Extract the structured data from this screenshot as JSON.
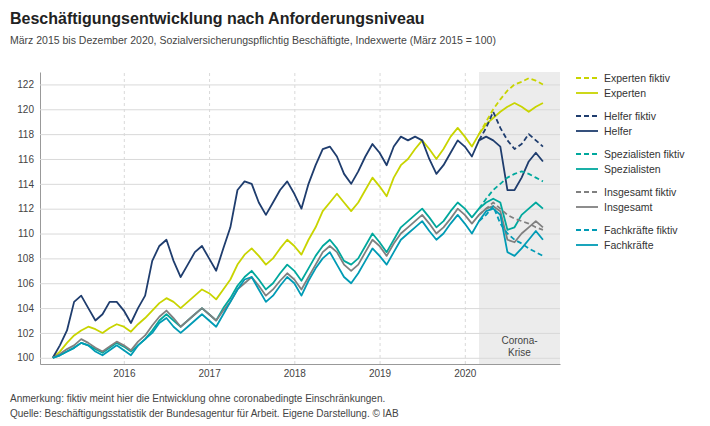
{
  "chart_data": {
    "type": "line",
    "title": "Beschäftigungsentwicklung nach Anforderungsniveau",
    "subtitle": "März 2015 bis Dezember 2020, Sozialversicherungspflichtig Beschäftigte, Indexwerte (März 2015 = 100)",
    "annotations": [
      "Anmerkung: fiktiv meint hier die Entwicklung ohne coronabedingte Einschränkungen.",
      "Quelle: Beschäftigungsstatistik der Bundesagentur für Arbeit. Eigene Darstellung. © IAB"
    ],
    "shaded_region": {
      "label": "Corona-\nKrise",
      "start": 2020.1667
    },
    "x": [
      2015.1667,
      2015.25,
      2015.3333,
      2015.4167,
      2015.5,
      2015.5833,
      2015.6667,
      2015.75,
      2015.8333,
      2015.9167,
      2016,
      2016.0833,
      2016.1667,
      2016.25,
      2016.3333,
      2016.4167,
      2016.5,
      2016.5833,
      2016.6667,
      2016.75,
      2016.8333,
      2016.9167,
      2017,
      2017.0833,
      2017.1667,
      2017.25,
      2017.3333,
      2017.4167,
      2017.5,
      2017.5833,
      2017.6667,
      2017.75,
      2017.8333,
      2017.9167,
      2018,
      2018.0833,
      2018.1667,
      2018.25,
      2018.3333,
      2018.4167,
      2018.5,
      2018.5833,
      2018.6667,
      2018.75,
      2018.8333,
      2018.9167,
      2019,
      2019.0833,
      2019.1667,
      2019.25,
      2019.3333,
      2019.4167,
      2019.5,
      2019.5833,
      2019.6667,
      2019.75,
      2019.8333,
      2019.9167,
      2020,
      2020.0833,
      2020.1667,
      2020.25,
      2020.3333,
      2020.4167,
      2020.5,
      2020.5833,
      2020.6667,
      2020.75,
      2020.8333,
      2020.9167
    ],
    "xlim": [
      2015.0167,
      2021.1167
    ],
    "xticks": [
      2016,
      2017,
      2018,
      2019,
      2020
    ],
    "ylim": [
      99.5,
      123
    ],
    "yticks": [
      100,
      102,
      104,
      106,
      108,
      110,
      112,
      114,
      116,
      118,
      120,
      122
    ],
    "grid": true,
    "legend": "right",
    "series": [
      {
        "name": "Experten",
        "color": "#c8d400",
        "line_style": "solid",
        "values": [
          100.0,
          100.5,
          101.2,
          101.8,
          102.2,
          102.5,
          102.3,
          102.0,
          102.4,
          102.7,
          102.5,
          102.1,
          102.7,
          103.2,
          103.8,
          104.4,
          104.8,
          104.5,
          104.0,
          104.5,
          105.0,
          105.5,
          105.2,
          104.7,
          105.5,
          106.3,
          107.5,
          108.3,
          108.8,
          108.2,
          107.5,
          108.0,
          108.8,
          109.5,
          109.0,
          108.3,
          109.5,
          110.5,
          111.8,
          112.5,
          113.2,
          112.5,
          111.8,
          112.5,
          113.5,
          114.5,
          113.8,
          113.0,
          114.5,
          115.5,
          116.0,
          116.8,
          117.5,
          116.8,
          116.0,
          116.8,
          117.8,
          118.5,
          117.8,
          117.0,
          118.0,
          118.8,
          119.3,
          119.8,
          120.2,
          120.5,
          120.2,
          119.8,
          120.2,
          120.5
        ]
      },
      {
        "name": "Helfer",
        "color": "#1f3d6e",
        "line_style": "solid",
        "values": [
          100.0,
          101.0,
          102.2,
          104.5,
          105.0,
          104.0,
          103.0,
          103.5,
          104.5,
          104.5,
          103.8,
          102.8,
          104.0,
          105.0,
          107.8,
          109.0,
          109.5,
          107.8,
          106.5,
          107.5,
          108.5,
          109.0,
          108.0,
          107.0,
          108.8,
          110.5,
          113.5,
          114.2,
          114.0,
          112.5,
          111.5,
          112.5,
          113.5,
          114.2,
          113.2,
          112.0,
          114.0,
          115.5,
          116.8,
          117.0,
          116.2,
          114.8,
          114.0,
          115.0,
          116.2,
          117.2,
          116.5,
          115.5,
          117.0,
          117.8,
          117.5,
          117.8,
          117.5,
          116.0,
          114.8,
          115.5,
          116.5,
          117.5,
          117.0,
          116.2,
          117.5,
          117.8,
          117.5,
          117.0,
          113.5,
          113.5,
          114.5,
          115.8,
          116.5,
          115.8
        ]
      },
      {
        "name": "Spezialisten",
        "color": "#00a89d",
        "line_style": "solid",
        "values": [
          100.0,
          100.2,
          100.5,
          100.8,
          101.2,
          101.0,
          100.7,
          100.4,
          100.8,
          101.2,
          100.9,
          100.5,
          101.0,
          101.5,
          102.2,
          103.0,
          103.5,
          103.0,
          102.5,
          103.0,
          103.5,
          104.0,
          103.5,
          103.0,
          104.0,
          104.8,
          105.8,
          106.5,
          107.0,
          106.3,
          105.5,
          106.0,
          106.8,
          107.5,
          107.0,
          106.2,
          107.2,
          108.2,
          109.0,
          109.5,
          108.8,
          107.8,
          107.5,
          108.0,
          109.0,
          110.0,
          109.3,
          108.5,
          109.5,
          110.5,
          111.0,
          111.5,
          112.0,
          111.3,
          110.5,
          111.0,
          111.8,
          112.5,
          112.0,
          111.3,
          112.0,
          112.5,
          112.8,
          112.5,
          110.3,
          110.5,
          111.5,
          112.0,
          112.5,
          112.0
        ]
      },
      {
        "name": "Insgesamt",
        "color": "#808080",
        "line_style": "solid",
        "values": [
          100.0,
          100.3,
          100.7,
          101.0,
          101.5,
          101.2,
          100.8,
          100.5,
          100.9,
          101.3,
          101.0,
          100.6,
          101.3,
          101.8,
          102.6,
          103.3,
          103.8,
          103.2,
          102.5,
          103.0,
          103.5,
          104.0,
          103.5,
          103.0,
          103.8,
          104.5,
          105.5,
          106.0,
          106.5,
          105.8,
          105.0,
          105.5,
          106.2,
          106.8,
          106.3,
          105.5,
          106.5,
          107.5,
          108.5,
          109.0,
          108.5,
          107.5,
          107.0,
          107.5,
          108.5,
          109.5,
          109.0,
          108.2,
          109.2,
          110.0,
          110.5,
          111.0,
          111.5,
          110.8,
          110.0,
          110.5,
          111.2,
          112.0,
          111.5,
          110.8,
          111.5,
          112.0,
          112.2,
          111.8,
          109.5,
          109.3,
          110.0,
          110.5,
          111.0,
          110.5
        ]
      },
      {
        "name": "Fachkräfte",
        "color": "#009bb5",
        "line_style": "solid",
        "values": [
          100.0,
          100.2,
          100.5,
          100.8,
          101.2,
          101.0,
          100.5,
          100.2,
          100.6,
          101.0,
          100.6,
          100.2,
          101.0,
          101.5,
          102.0,
          102.8,
          103.2,
          102.5,
          102.0,
          102.5,
          103.0,
          103.5,
          103.0,
          102.5,
          103.5,
          104.5,
          105.5,
          106.3,
          106.5,
          105.5,
          104.5,
          105.0,
          105.8,
          106.5,
          106.0,
          105.0,
          106.2,
          107.2,
          108.0,
          108.5,
          107.5,
          106.5,
          106.0,
          106.8,
          107.8,
          108.8,
          108.2,
          107.5,
          108.5,
          109.5,
          110.0,
          110.5,
          111.0,
          110.2,
          109.5,
          110.0,
          110.8,
          111.5,
          110.8,
          110.0,
          111.0,
          111.8,
          112.0,
          111.5,
          108.5,
          108.2,
          108.8,
          109.5,
          110.2,
          109.5
        ]
      },
      {
        "name": "Experten fiktiv",
        "color": "#c8d400",
        "line_style": "dashed",
        "values": [
          null,
          null,
          null,
          null,
          null,
          null,
          null,
          null,
          null,
          null,
          null,
          null,
          null,
          null,
          null,
          null,
          null,
          null,
          null,
          null,
          null,
          null,
          null,
          null,
          null,
          null,
          null,
          null,
          null,
          null,
          null,
          null,
          null,
          null,
          null,
          null,
          null,
          null,
          null,
          null,
          null,
          null,
          null,
          null,
          null,
          null,
          null,
          null,
          null,
          null,
          null,
          null,
          null,
          null,
          null,
          null,
          null,
          null,
          null,
          null,
          118.0,
          119.0,
          120.0,
          120.8,
          121.5,
          122.0,
          122.2,
          122.5,
          122.3,
          122.0
        ]
      },
      {
        "name": "Helfer fiktiv",
        "color": "#1f3d6e",
        "line_style": "dashed",
        "values": [
          null,
          null,
          null,
          null,
          null,
          null,
          null,
          null,
          null,
          null,
          null,
          null,
          null,
          null,
          null,
          null,
          null,
          null,
          null,
          null,
          null,
          null,
          null,
          null,
          null,
          null,
          null,
          null,
          null,
          null,
          null,
          null,
          null,
          null,
          null,
          null,
          null,
          null,
          null,
          null,
          null,
          null,
          null,
          null,
          null,
          null,
          null,
          null,
          null,
          null,
          null,
          null,
          null,
          null,
          null,
          null,
          null,
          null,
          null,
          null,
          117.5,
          118.5,
          119.8,
          118.5,
          117.5,
          116.8,
          117.2,
          118.0,
          117.5,
          117.0
        ]
      },
      {
        "name": "Spezialisten fiktiv",
        "color": "#00a89d",
        "line_style": "dashed",
        "values": [
          null,
          null,
          null,
          null,
          null,
          null,
          null,
          null,
          null,
          null,
          null,
          null,
          null,
          null,
          null,
          null,
          null,
          null,
          null,
          null,
          null,
          null,
          null,
          null,
          null,
          null,
          null,
          null,
          null,
          null,
          null,
          null,
          null,
          null,
          null,
          null,
          null,
          null,
          null,
          null,
          null,
          null,
          null,
          null,
          null,
          null,
          null,
          null,
          null,
          null,
          null,
          null,
          null,
          null,
          null,
          null,
          null,
          null,
          null,
          null,
          112.0,
          112.8,
          113.5,
          114.0,
          114.5,
          114.8,
          115.0,
          114.8,
          114.5,
          114.2
        ]
      },
      {
        "name": "Insgesamt fiktiv",
        "color": "#808080",
        "line_style": "dashed",
        "values": [
          null,
          null,
          null,
          null,
          null,
          null,
          null,
          null,
          null,
          null,
          null,
          null,
          null,
          null,
          null,
          null,
          null,
          null,
          null,
          null,
          null,
          null,
          null,
          null,
          null,
          null,
          null,
          null,
          null,
          null,
          null,
          null,
          null,
          null,
          null,
          null,
          null,
          null,
          null,
          null,
          null,
          null,
          null,
          null,
          null,
          null,
          null,
          null,
          null,
          null,
          null,
          null,
          null,
          null,
          null,
          null,
          null,
          null,
          null,
          null,
          111.5,
          112.0,
          112.5,
          112.0,
          111.5,
          111.2,
          111.0,
          110.8,
          110.5,
          110.3
        ]
      },
      {
        "name": "Fachkräfte fiktiv",
        "color": "#009bb5",
        "line_style": "dashed",
        "values": [
          null,
          null,
          null,
          null,
          null,
          null,
          null,
          null,
          null,
          null,
          null,
          null,
          null,
          null,
          null,
          null,
          null,
          null,
          null,
          null,
          null,
          null,
          null,
          null,
          null,
          null,
          null,
          null,
          null,
          null,
          null,
          null,
          null,
          null,
          null,
          null,
          null,
          null,
          null,
          null,
          null,
          null,
          null,
          null,
          null,
          null,
          null,
          null,
          null,
          null,
          null,
          null,
          null,
          null,
          null,
          null,
          null,
          null,
          null,
          null,
          111.0,
          111.5,
          112.2,
          110.8,
          110.0,
          109.5,
          109.2,
          108.8,
          108.5,
          108.2
        ]
      }
    ]
  }
}
